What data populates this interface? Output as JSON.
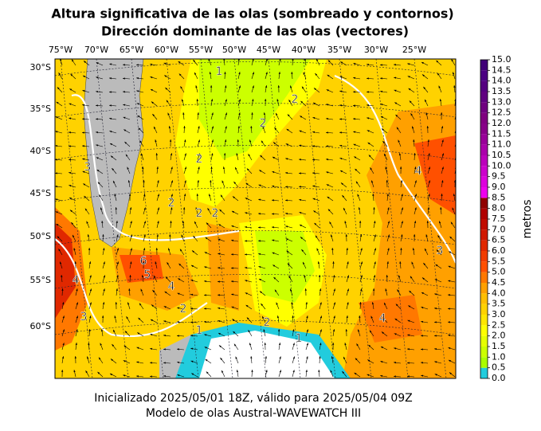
{
  "title": [
    "Altura significativa de las olas (sombreado y contornos)",
    "Dirección dominante de las olas (vectores)"
  ],
  "lon_ticks": [
    "75°W",
    "70°W",
    "65°W",
    "60°W",
    "55°W",
    "50°W",
    "45°W",
    "40°W",
    "35°W",
    "30°W",
    "25°W"
  ],
  "lat_ticks": [
    "30°S",
    "35°S",
    "40°S",
    "45°S",
    "50°S",
    "55°S",
    "60°S"
  ],
  "contour_labels": [
    "1",
    "2",
    "2",
    "2",
    "2",
    "2",
    "2",
    "3",
    "3",
    "4",
    "4",
    "4",
    "4",
    "5",
    "6",
    "2",
    "2",
    "1",
    "1",
    "3"
  ],
  "colorbar": {
    "label": "metros",
    "lim": [
      0,
      15
    ],
    "ticks": [
      {
        "value": 0,
        "label": "0.0"
      },
      {
        "value": 0.5,
        "label": "0.5"
      },
      {
        "value": 1,
        "label": "1.0"
      },
      {
        "value": 1.5,
        "label": "1.5"
      },
      {
        "value": 2,
        "label": "2.0"
      },
      {
        "value": 2.5,
        "label": "2.5"
      },
      {
        "value": 3,
        "label": "3.0"
      },
      {
        "value": 3.5,
        "label": "3.5"
      },
      {
        "value": 4,
        "label": "4.0"
      },
      {
        "value": 4.5,
        "label": "4.5"
      },
      {
        "value": 5,
        "label": "5.0"
      },
      {
        "value": 5.5,
        "label": "5.5"
      },
      {
        "value": 6,
        "label": "6.0"
      },
      {
        "value": 6.5,
        "label": "6.5"
      },
      {
        "value": 7,
        "label": "7.0"
      },
      {
        "value": 7.5,
        "label": "7.5"
      },
      {
        "value": 8,
        "label": "8.0"
      },
      {
        "value": 8.5,
        "label": "8.5"
      },
      {
        "value": 9,
        "label": "9.0"
      },
      {
        "value": 9.5,
        "label": "9.5"
      },
      {
        "value": 10,
        "label": "10.0"
      },
      {
        "value": 10.5,
        "label": "10.5"
      },
      {
        "value": 11,
        "label": "11.0"
      },
      {
        "value": 11.5,
        "label": "11.5"
      },
      {
        "value": 12,
        "label": "12.0"
      },
      {
        "value": 12.5,
        "label": "12.5"
      },
      {
        "value": 13,
        "label": "13.0"
      },
      {
        "value": 13.5,
        "label": "13.5"
      },
      {
        "value": 14,
        "label": "14.0"
      },
      {
        "value": 14.5,
        "label": "14.5"
      },
      {
        "value": 15,
        "label": "15.0"
      }
    ],
    "colors": [
      "#22ccdd",
      "#aaff00",
      "#ccff00",
      "#e6ff00",
      "#ffff00",
      "#ffe600",
      "#ffd200",
      "#ffbe00",
      "#ffa000",
      "#ff7800",
      "#ff5000",
      "#f03c00",
      "#e02800",
      "#d01800",
      "#c00c00",
      "#b00000",
      "#900000",
      "#ee00ee",
      "#dd00dd",
      "#cc00cc",
      "#bb00bb",
      "#aa00aa",
      "#990099",
      "#880088",
      "#800080",
      "#700080",
      "#600080",
      "#550080",
      "#4b0082",
      "#400078"
    ]
  },
  "footer": [
    "Inicializado 2025/05/01 18Z, válido para 2025/05/04 09Z",
    "Modelo de olas Austral-WAVEWATCH III"
  ]
}
